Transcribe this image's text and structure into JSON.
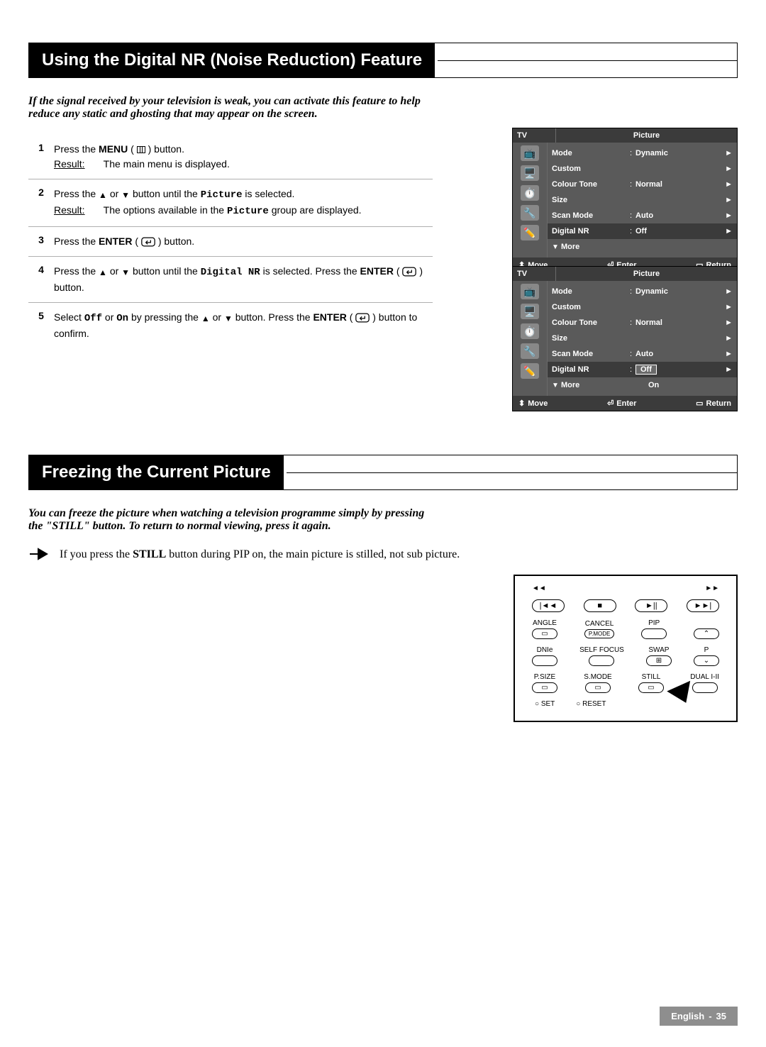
{
  "section1": {
    "title": "Using the Digital NR (Noise Reduction) Feature",
    "intro": "If the signal received by your television is weak, you can activate this feature to help reduce any static and ghosting that may appear on the screen.",
    "steps": [
      {
        "no": "1",
        "prefix": "Press the ",
        "bold1": "MENU",
        "mid": " ( ",
        "icon": "menu",
        "mid2": " ) button.",
        "result": "The main menu is displayed."
      },
      {
        "no": "2",
        "prefix": "Press the ",
        "tri_up": "▲",
        "tri_or": " or ",
        "tri_down": "▼",
        "mid": " button until the ",
        "mono": "Picture",
        "mid2": " is selected.",
        "result_prefix": "The options available in the ",
        "result_mono": "Picture",
        "result_suffix": " group are displayed."
      },
      {
        "no": "3",
        "prefix": "Press the ",
        "bold1": "ENTER",
        "mid": " ( ",
        "icon": "enter",
        "mid2": " ) button."
      },
      {
        "no": "4",
        "prefix": "Press the ",
        "tri_up": "▲",
        "tri_or": " or ",
        "tri_down": "▼",
        "mid": " button until the ",
        "mono": "Digital NR",
        "mid2": " is selected. Press the ",
        "bold2": "ENTER",
        "mid3": " ( ",
        "icon2": "enter",
        "mid4": " ) button."
      },
      {
        "no": "5",
        "prefix": "Select ",
        "mono1": "Off",
        "mid1": " or ",
        "mono2": "On",
        "mid2": "  by pressing the ",
        "tri_up": "▲",
        "tri_or": " or ",
        "tri_down": "▼",
        "mid3": " button. Press the ",
        "bold1": "ENTER",
        "mid4": " ( ",
        "icon": "enter",
        "mid5": " ) button to confirm."
      }
    ]
  },
  "osd1": {
    "tv": "TV",
    "title": "Picture",
    "icons": [
      "📺",
      "🖥️",
      "⏱️",
      "🔧",
      "✏️"
    ],
    "rows": [
      {
        "label": "Mode",
        "colon": ":",
        "val": "Dynamic",
        "arrow": "►",
        "hl": false
      },
      {
        "label": "Custom",
        "colon": "",
        "val": "",
        "arrow": "►",
        "hl": false
      },
      {
        "label": "Colour Tone",
        "colon": ":",
        "val": "Normal",
        "arrow": "►",
        "hl": false
      },
      {
        "label": "Size",
        "colon": "",
        "val": "",
        "arrow": "►",
        "hl": false
      },
      {
        "label": "Scan Mode",
        "colon": ":",
        "val": "Auto",
        "arrow": "►",
        "hl": false
      },
      {
        "label": "Digital NR",
        "colon": ":",
        "val": "Off",
        "arrow": "►",
        "hl": true
      },
      {
        "label": "More",
        "colon": "",
        "val": "",
        "arrow": "",
        "hl": false,
        "down": true
      }
    ],
    "footer": {
      "move": "Move",
      "enter": "Enter",
      "return": "Return"
    }
  },
  "osd2": {
    "tv": "TV",
    "title": "Picture",
    "icons": [
      "📺",
      "🖥️",
      "⏱️",
      "🔧",
      "✏️"
    ],
    "rows": [
      {
        "label": "Mode",
        "colon": ":",
        "val": "Dynamic",
        "arrow": "►",
        "hl": false
      },
      {
        "label": "Custom",
        "colon": "",
        "val": "",
        "arrow": "►",
        "hl": false
      },
      {
        "label": "Colour Tone",
        "colon": ":",
        "val": "Normal",
        "arrow": "►",
        "hl": false
      },
      {
        "label": "Size",
        "colon": "",
        "val": "",
        "arrow": "►",
        "hl": false
      },
      {
        "label": "Scan Mode",
        "colon": ":",
        "val": "Auto",
        "arrow": "►",
        "hl": false
      },
      {
        "label": "Digital NR",
        "colon": ":",
        "val_box": "Off",
        "arrow": "►",
        "hl": true
      },
      {
        "label": "More",
        "colon": "",
        "val_plain": "On",
        "arrow": "",
        "hl": false,
        "down": true
      }
    ],
    "footer": {
      "move": "Move",
      "enter": "Enter",
      "return": "Return"
    }
  },
  "section2": {
    "title": "Freezing the Current Picture",
    "intro": "You can freeze the picture when watching a television programme simply by pressing the \"STILL\" button. To return to normal viewing, press it again.",
    "note_prefix": "If you press the ",
    "note_bold": "STILL",
    "note_suffix": " button during PIP on, the main picture is stilled, not sub picture."
  },
  "remote": {
    "r1": [
      "◄◄",
      "",
      "",
      "►►"
    ],
    "r2": [
      "|◄◄",
      "■",
      "►||",
      "►►|"
    ],
    "r3_labels": [
      "ANGLE",
      "CANCEL",
      "PIP",
      ""
    ],
    "r4_labels": [
      "DNIe",
      "SELF FOCUS",
      "SWAP",
      "P"
    ],
    "r5_labels": [
      "P.SIZE",
      "S.MODE",
      "STILL",
      "DUAL I-II"
    ],
    "reset": [
      "SET",
      "RESET"
    ]
  },
  "footer": {
    "lang": "English",
    "sep": "-",
    "page": "35"
  },
  "colors": {
    "black": "#000000",
    "white": "#ffffff",
    "grayEdge": "#8e8e8e",
    "osdBg": "#5a5a5a",
    "osdDark": "#3b3b3b",
    "divider": "#b0b0b0"
  }
}
